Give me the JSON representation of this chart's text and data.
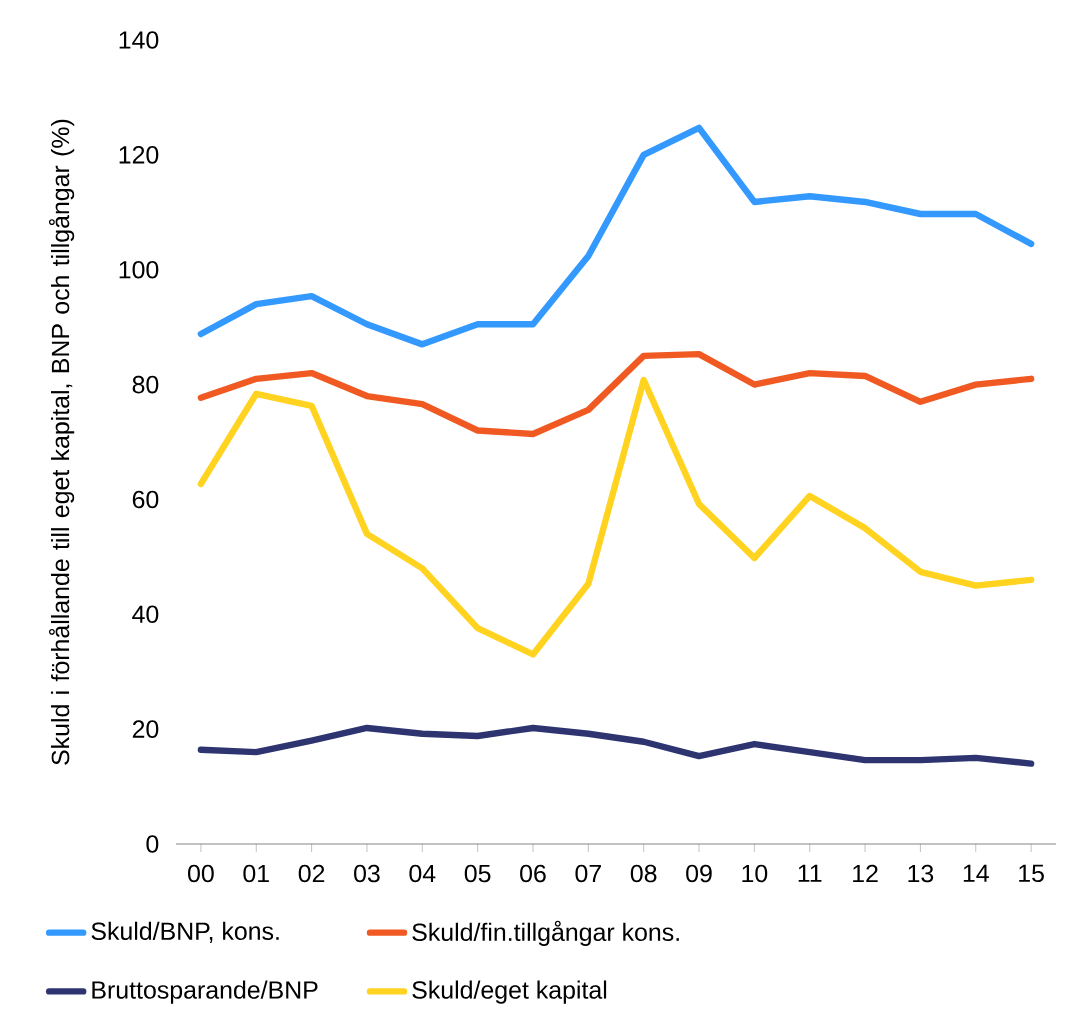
{
  "chart_data": {
    "type": "line",
    "ylabel": "Skuld i förhållande till eget kapital, BNP och tillgångar (%)",
    "categories": [
      "00",
      "01",
      "02",
      "03",
      "04",
      "05",
      "06",
      "07",
      "08",
      "09",
      "10",
      "11",
      "12",
      "13",
      "14",
      "15"
    ],
    "series": [
      {
        "name": "Skuld/BNP, kons.",
        "color": "#3399ff",
        "values": [
          88.8,
          94,
          95.4,
          90.5,
          87,
          90.5,
          90.5,
          102.4,
          120,
          124.7,
          111.8,
          112.8,
          111.8,
          109.7,
          109.7,
          104.5
        ]
      },
      {
        "name": "Skuld/fin.tillgångar kons.",
        "color": "#f05a22",
        "values": [
          77.7,
          81,
          82,
          78,
          76.6,
          72,
          71.4,
          75.6,
          85,
          85.3,
          80,
          82,
          81.5,
          77,
          80,
          81
        ]
      },
      {
        "name": "Bruttosparande/BNP",
        "color": "#2e3470",
        "values": [
          16.4,
          16,
          18,
          20.2,
          19.2,
          18.8,
          20.2,
          19.2,
          17.8,
          15.3,
          17.4,
          16,
          14.6,
          14.6,
          15,
          14
        ]
      },
      {
        "name": "Skuld/eget kapital",
        "color": "#ffd320",
        "values": [
          62.7,
          78.4,
          76.3,
          54,
          48,
          37.6,
          33,
          45.3,
          80.8,
          59.2,
          49.8,
          60.6,
          55,
          47.4,
          45,
          46
        ]
      }
    ],
    "ylim": [
      0,
      140
    ],
    "yticks": [
      0,
      20,
      40,
      60,
      80,
      100,
      120,
      140
    ],
    "legend": "bottom",
    "marker": "none",
    "line_style": "solid"
  }
}
